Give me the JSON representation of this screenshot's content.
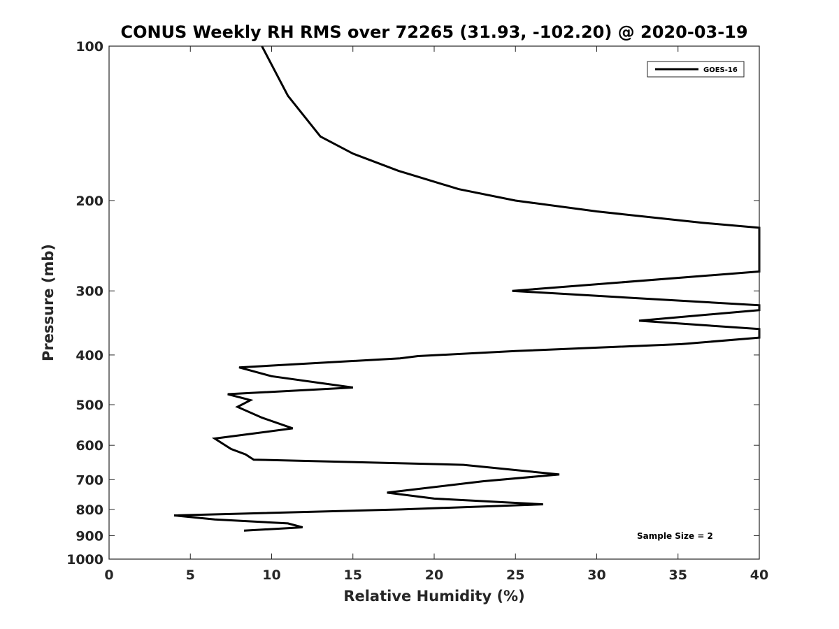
{
  "chart_data": {
    "type": "line",
    "title": "CONUS Weekly RH RMS over 72265 (31.93, -102.20) @ 2020-03-19",
    "xlabel": "Relative Humidity (%)",
    "ylabel": "Pressure (mb)",
    "xlim": [
      0,
      40
    ],
    "ylim": [
      100,
      1000
    ],
    "yscale": "log",
    "yreversed": true,
    "x_ticks": [
      0,
      5,
      10,
      15,
      20,
      25,
      30,
      35,
      40
    ],
    "x_tick_labels": [
      "0",
      "5",
      "10",
      "15",
      "20",
      "25",
      "30",
      "35",
      "40"
    ],
    "y_ticks": [
      100,
      200,
      300,
      400,
      500,
      600,
      700,
      800,
      900,
      1000
    ],
    "y_tick_labels": [
      "100",
      "200",
      "300",
      "400",
      "500",
      "600",
      "700",
      "800",
      "900",
      "1000"
    ],
    "grid": false,
    "legend_position": "top-right",
    "annotation": "Sample Size = 2",
    "series": [
      {
        "name": "GOES-16",
        "color": "#000000",
        "points": [
          [
            9.4,
            100
          ],
          [
            11.0,
            125
          ],
          [
            13.0,
            150
          ],
          [
            15.0,
            162
          ],
          [
            17.8,
            175
          ],
          [
            21.5,
            190
          ],
          [
            25.0,
            200
          ],
          [
            30.0,
            210
          ],
          [
            36.5,
            221
          ],
          [
            40.0,
            226
          ],
          [
            40.0,
            275
          ],
          [
            24.8,
            300
          ],
          [
            40.0,
            320
          ],
          [
            40.0,
            327
          ],
          [
            32.6,
            343
          ],
          [
            40.0,
            356
          ],
          [
            40.0,
            370
          ],
          [
            35.2,
            381
          ],
          [
            25.0,
            393
          ],
          [
            19.0,
            402
          ],
          [
            17.9,
            406
          ],
          [
            8.0,
            423
          ],
          [
            10.0,
            440
          ],
          [
            15.0,
            463
          ],
          [
            7.3,
            477
          ],
          [
            8.7,
            490
          ],
          [
            7.9,
            505
          ],
          [
            9.4,
            530
          ],
          [
            11.3,
            556
          ],
          [
            6.5,
            582
          ],
          [
            7.5,
            610
          ],
          [
            8.4,
            625
          ],
          [
            8.9,
            640
          ],
          [
            21.8,
            655
          ],
          [
            27.7,
            684
          ],
          [
            23.0,
            705
          ],
          [
            17.1,
            742
          ],
          [
            20.0,
            762
          ],
          [
            26.7,
            782
          ],
          [
            18.0,
            800
          ],
          [
            4.0,
            822
          ],
          [
            6.5,
            837
          ],
          [
            11.0,
            852
          ],
          [
            11.9,
            867
          ],
          [
            8.3,
            880
          ]
        ]
      }
    ]
  }
}
